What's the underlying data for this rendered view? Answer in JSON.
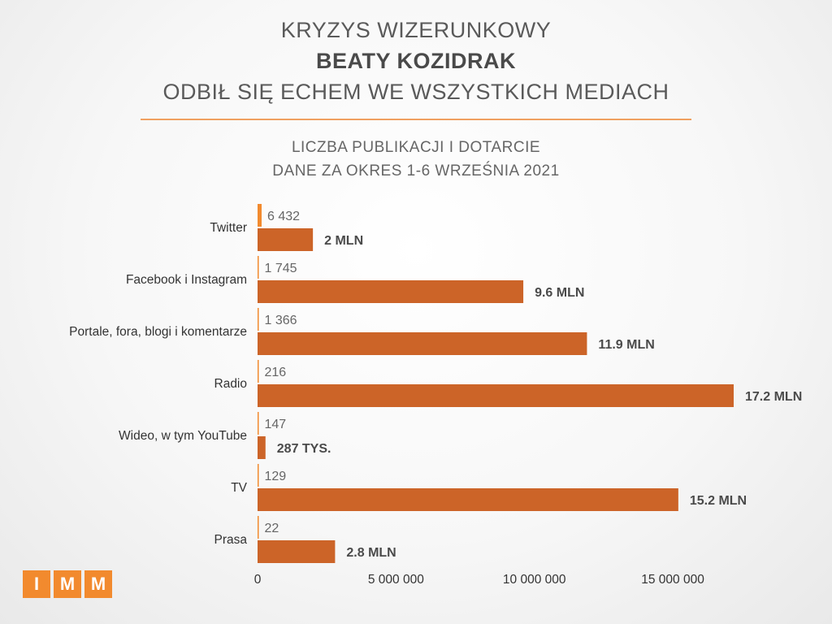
{
  "header": {
    "line1": "KRYZYS WIZERUNKOWY",
    "line2": "BEATY KOZIDRAK",
    "line3": "ODBIŁ SIĘ ECHEM WE WSZYSTKICH MEDIACH"
  },
  "subtitle": {
    "line1": "LICZBA PUBLIKACJI I DOTARCIE",
    "line2": "DANE ZA OKRES 1-6 WRZEŚNIA 2021"
  },
  "logo": [
    "I",
    "M",
    "M"
  ],
  "colors": {
    "publications": "#f28a2e",
    "reach": "#cc6428",
    "reach_label": "#4a4a4a",
    "pub_label": "#666666"
  },
  "chart_data": {
    "type": "bar",
    "orientation": "horizontal",
    "categories": [
      "Twitter",
      "Facebook i Instagram",
      "Portale, fora, blogi i komentarze",
      "Radio",
      "Wideo, w tym YouTube",
      "TV",
      "Prasa"
    ],
    "series": [
      {
        "values": [
          6432,
          1745,
          1366,
          216,
          147,
          129,
          22
        ],
        "labels": [
          "6 432",
          "1 745",
          "1 366",
          "216",
          "147",
          "129",
          "22"
        ]
      },
      {
        "values": [
          2000000,
          9600000,
          11900000,
          17200000,
          287000,
          15200000,
          2800000
        ],
        "labels": [
          "2 MLN",
          "9.6 MLN",
          "11.9 MLN",
          "17.2 MLN",
          "287 TYS.",
          "15.2 MLN",
          "2.8 MLN"
        ]
      }
    ],
    "xlim": [
      0,
      17200000
    ],
    "xticks": [
      0,
      5000000,
      10000000,
      15000000
    ],
    "xtick_labels": [
      "0",
      "5 000 000",
      "10 000 000",
      "15 000 000"
    ],
    "grid": false,
    "legend": "none"
  }
}
